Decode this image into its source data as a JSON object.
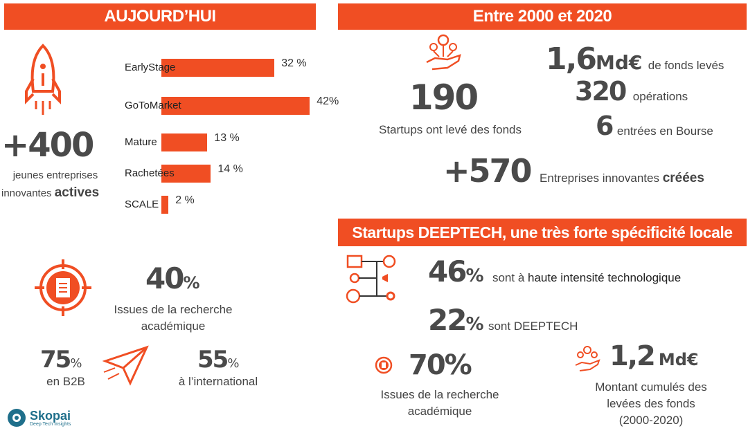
{
  "left_banner": "AUJOURD’HUI",
  "right_banner": "Entre 2000 et 2020",
  "deeptech_banner": "Startups DEEPTECH, une très forte spécificité locale",
  "active": {
    "number": "+400",
    "line1": "jeunes entreprises",
    "line2_prefix": "innovantes ",
    "line2_bold": "actives"
  },
  "stages": {
    "items": [
      {
        "label": "EarlyStage",
        "value": 32,
        "value_text": "32 %"
      },
      {
        "label": "GoToMarket",
        "value": 42,
        "value_text": "42%"
      },
      {
        "label": "Mature",
        "value": 13,
        "value_text": "13 %"
      },
      {
        "label": "Rachetées",
        "value": 14,
        "value_text": "14 %"
      },
      {
        "label": "SCALE",
        "value": 2,
        "value_text": "2 %"
      }
    ]
  },
  "research": {
    "number": "40",
    "pct": "%",
    "line1": "Issues de la recherche",
    "line2": "académique"
  },
  "b2b": {
    "number": "75",
    "pct": "%",
    "label": "en B2B"
  },
  "intl": {
    "number": "55",
    "pct": "%",
    "label": "à l’international"
  },
  "logo": {
    "name": "Skopai",
    "tagline": "Deep Tech Insights"
  },
  "funded": {
    "number": "190",
    "label": "Startups ont levé des fonds"
  },
  "funds": {
    "number": "1,6",
    "unit": "Md€",
    "label": "de fonds levés"
  },
  "operations": {
    "number": "320",
    "label": "opérations"
  },
  "ipo": {
    "number": "6",
    "label": "entrées en Bourse"
  },
  "created": {
    "number": "+570",
    "label_prefix": "Entreprises innovantes ",
    "label_bold": "créées"
  },
  "deeptech": {
    "high_tech": {
      "number": "46",
      "pct": "%",
      "label_prefix": "sont à ",
      "label_bold": "haute intensité technologique"
    },
    "deeptech_share": {
      "number": "22",
      "pct": "%",
      "label": "sont DEEPTECH"
    },
    "research": {
      "number": "70%",
      "line1": "Issues de la recherche",
      "line2": "académique"
    },
    "raised": {
      "number": "1,2",
      "unit": "Md€",
      "line1": "Montant cumulés des",
      "line2": "levées des fonds",
      "line3": "(2000-2020)"
    }
  },
  "colors": {
    "accent": "#f04e23",
    "dark": "#4a4a4a",
    "logo": "#1f6f8b"
  },
  "icons": [
    "rocket-icon",
    "target-document-icon",
    "paper-plane-icon",
    "money-hand-icon",
    "workflow-icon"
  ]
}
